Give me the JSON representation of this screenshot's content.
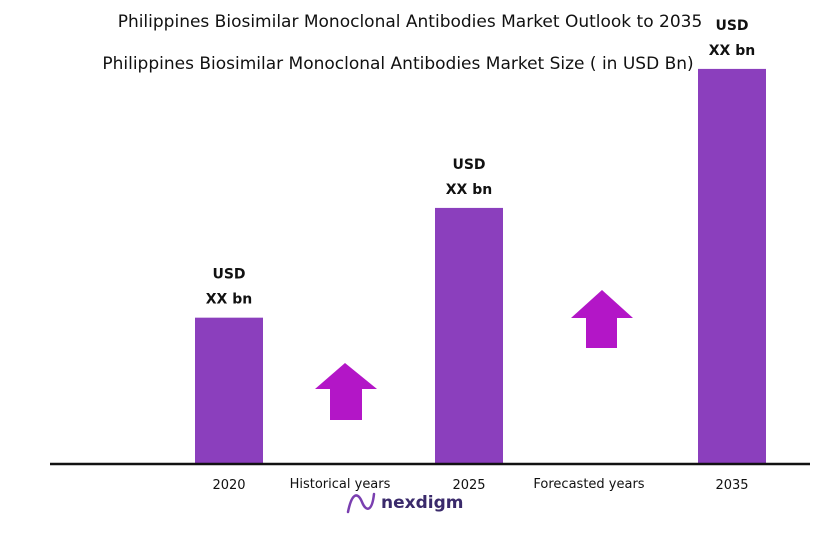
{
  "chart_data": {
    "type": "bar",
    "title": "Philippines Biosimilar Monoclonal Antibodies Market Outlook to 2035",
    "subtitle": "Philippines Biosimilar Monoclonal Antibodies  Market Size  ( in USD Bn)",
    "categories": [
      "2020",
      "2025",
      "2035"
    ],
    "values": [
      1.0,
      1.75,
      2.7
    ],
    "value_labels": [
      [
        "USD",
        "XX bn"
      ],
      [
        "USD",
        "XX bn"
      ],
      [
        "USD",
        "XX bn"
      ]
    ],
    "ylim": [
      0,
      3.0
    ],
    "grid": false,
    "bar_color": "#8b3fbd",
    "period_labels": [
      "Historical years",
      "Forecasted years"
    ],
    "arrow_color": "#b316c7"
  },
  "logo": {
    "text": "nexdigm"
  }
}
